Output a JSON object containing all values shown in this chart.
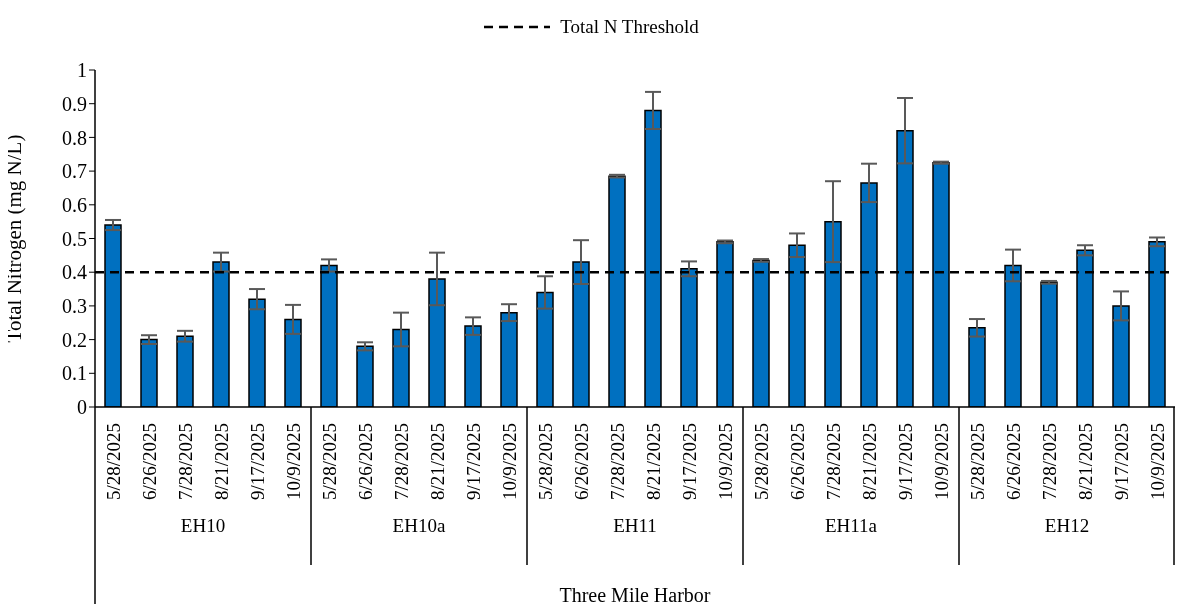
{
  "chart_data": {
    "type": "bar",
    "categories": [
      "5/28/2025",
      "6/26/2025",
      "7/28/2025",
      "8/21/2025",
      "9/17/2025",
      "10/9/2025",
      "5/28/2025",
      "6/26/2025",
      "7/28/2025",
      "8/21/2025",
      "9/17/2025",
      "10/9/2025",
      "5/28/2025",
      "6/26/2025",
      "7/28/2025",
      "8/21/2025",
      "9/17/2025",
      "10/9/2025",
      "5/28/2025",
      "6/26/2025",
      "7/28/2025",
      "8/21/2025",
      "9/17/2025",
      "10/9/2025",
      "5/28/2025",
      "6/26/2025",
      "7/28/2025",
      "8/21/2025",
      "9/17/2025",
      "10/9/2025"
    ],
    "series": [
      {
        "color": "#0070c0",
        "values": [
          0.54,
          0.2,
          0.21,
          0.43,
          0.32,
          0.26,
          0.42,
          0.18,
          0.23,
          0.38,
          0.24,
          0.28,
          0.34,
          0.43,
          0.685,
          0.88,
          0.41,
          0.49,
          0.435,
          0.48,
          0.55,
          0.665,
          0.82,
          0.725,
          0.235,
          0.42,
          0.37,
          0.465,
          0.3,
          0.49
        ],
        "errors": [
          0.015,
          0.013,
          0.016,
          0.028,
          0.03,
          0.043,
          0.018,
          0.012,
          0.05,
          0.078,
          0.026,
          0.025,
          0.048,
          0.065,
          0.004,
          0.055,
          0.022,
          0.004,
          0.004,
          0.035,
          0.12,
          0.057,
          0.097,
          0.003,
          0.026,
          0.047,
          0.004,
          0.015,
          0.043,
          0.013
        ]
      }
    ],
    "ylabel": "Total Nitrogen (mg N/L)",
    "xlabel": "Three Mile Harbor",
    "annotations": [
      "EH10",
      "EH10a",
      "EH11",
      "EH11a",
      "EH12"
    ],
    "ylim": [
      0,
      1
    ],
    "yticks": [
      0,
      0.1,
      0.2,
      0.3,
      0.4,
      0.5,
      0.6,
      0.7,
      0.8,
      0.9,
      1
    ],
    "ref_lines": [
      {
        "axis": "y",
        "value": 0.4,
        "label": "Total N Threshold",
        "color": "#000000",
        "line_style": "dashed"
      }
    ],
    "legend": "top",
    "grid": false
  }
}
